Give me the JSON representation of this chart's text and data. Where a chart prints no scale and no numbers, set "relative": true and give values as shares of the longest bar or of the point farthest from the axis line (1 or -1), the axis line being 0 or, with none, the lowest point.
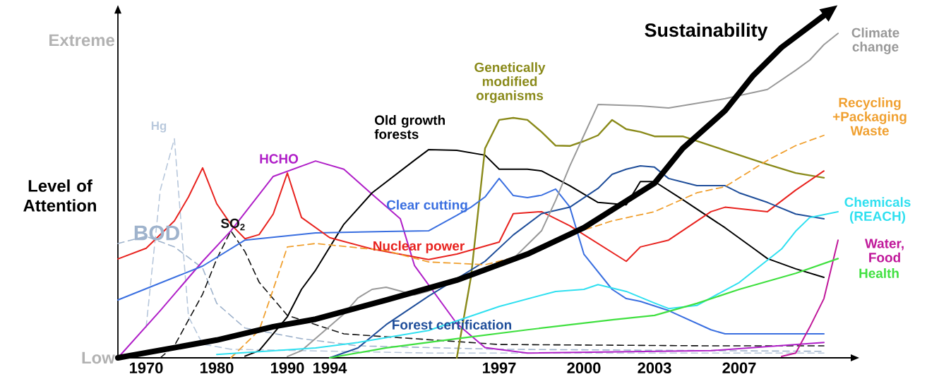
{
  "chart_data": {
    "type": "line",
    "relative": true,
    "ylabel": "Level of Attention",
    "annotations": [
      "Extreme",
      "Low"
    ],
    "categories": [
      null,
      null,
      "1970",
      null,
      null,
      null,
      null,
      "1980",
      null,
      null,
      null,
      null,
      "1990",
      null,
      null,
      "1994",
      null,
      null,
      null,
      null,
      null,
      null,
      null,
      null,
      null,
      null,
      null,
      "1997",
      null,
      null,
      null,
      null,
      null,
      "2000",
      null,
      null,
      null,
      null,
      "2003",
      null,
      null,
      null,
      null,
      null,
      "2007",
      null,
      null,
      null,
      null,
      null,
      null,
      null,
      null
    ],
    "line_style": "solid",
    "series": [
      {
        "name": "Hg",
        "color": "#b8c8dc",
        "line_style": "dashed",
        "values": [
          null,
          null,
          0.09,
          0.49,
          0.64,
          0.12,
          0.04,
          null,
          0.025,
          null,
          null,
          null,
          null,
          null,
          null,
          null,
          null,
          null,
          null,
          null,
          null,
          null,
          0.014,
          null,
          null,
          null,
          null,
          null,
          null,
          null,
          null,
          null,
          null,
          null,
          null,
          null,
          null,
          null,
          null,
          null,
          null,
          null,
          0.014,
          null,
          null,
          null,
          null,
          null,
          null,
          null,
          0.014,
          null,
          null
        ]
      },
      {
        "name": "BOD",
        "color": "#9fb3cc",
        "line_style": "dashed",
        "values": [
          0.334,
          null,
          0.355,
          null,
          0.324,
          null,
          0.262,
          0.159,
          null,
          0.087,
          null,
          null,
          null,
          0.056,
          null,
          null,
          null,
          0.035,
          null,
          null,
          null,
          null,
          null,
          null,
          null,
          null,
          null,
          0.025,
          null,
          null,
          null,
          null,
          null,
          null,
          null,
          null,
          null,
          null,
          null,
          null,
          null,
          null,
          0.021,
          null,
          null,
          null,
          null,
          null,
          null,
          null,
          0.019,
          null,
          null
        ]
      },
      {
        "name": "SO$_{2}$",
        "color": "#111111",
        "line_style": "dashed",
        "values": [
          null,
          null,
          null,
          0,
          0.035,
          null,
          0.186,
          0.289,
          0.371,
          0.31,
          0.221,
          null,
          0.124,
          null,
          null,
          null,
          0.07,
          null,
          null,
          null,
          null,
          null,
          null,
          null,
          null,
          null,
          null,
          0.039,
          null,
          null,
          null,
          null,
          null,
          null,
          null,
          null,
          null,
          null,
          null,
          null,
          null,
          null,
          0.035,
          null,
          null,
          null,
          null,
          null,
          null,
          null,
          0.035,
          null,
          null
        ]
      },
      {
        "name": "HCHO",
        "color": "#b020c8",
        "values": [
          0,
          null,
          null,
          0.138,
          null,
          null,
          0.282,
          null,
          0.371,
          null,
          null,
          0.53,
          null,
          null,
          0.575,
          null,
          0.551,
          null,
          0.478,
          null,
          0.406,
          0.27,
          null,
          null,
          0.1,
          null,
          0.03,
          null,
          null,
          0.014,
          null,
          null,
          null,
          null,
          null,
          null,
          null,
          null,
          null,
          null,
          null,
          null,
          0.021,
          null,
          null,
          null,
          null,
          null,
          null,
          null,
          0.045,
          null,
          null
        ]
      },
      {
        "name": "Old growth forests",
        "color": "#000000",
        "values": [
          null,
          null,
          null,
          null,
          null,
          null,
          null,
          null,
          null,
          0.005,
          0.021,
          null,
          0.12,
          0.2,
          0.256,
          null,
          0.39,
          null,
          0.482,
          null,
          null,
          0.577,
          0.608,
          null,
          0.606,
          null,
          0.592,
          0.551,
          null,
          0.551,
          0.546,
          null,
          0.503,
          null,
          0.454,
          null,
          0.447,
          0.515,
          0.515,
          null,
          0.462,
          null,
          null,
          0.38,
          null,
          0.32,
          0.29,
          null,
          0.26,
          null,
          0.235,
          null,
          null
        ]
      },
      {
        "name": "Genetically modified organisms",
        "color": "#8a8a1a",
        "values": [
          null,
          null,
          null,
          null,
          null,
          null,
          null,
          null,
          null,
          null,
          null,
          null,
          null,
          null,
          null,
          null,
          null,
          null,
          null,
          null,
          null,
          null,
          null,
          null,
          0,
          0.235,
          0.612,
          0.695,
          0.701,
          0.695,
          0.66,
          0.62,
          0.619,
          0.633,
          0.65,
          0.695,
          0.668,
          0.66,
          0.647,
          null,
          0.647,
          null,
          0.62,
          0.606,
          null,
          null,
          0.565,
          null,
          0.54,
          null,
          0.526,
          null,
          null
        ]
      },
      {
        "name": "Clear cutting",
        "color": "#3a6fe0",
        "values": [
          0.169,
          null,
          null,
          null,
          null,
          null,
          0.268,
          null,
          null,
          0.344,
          null,
          null,
          null,
          null,
          0.365,
          null,
          null,
          null,
          null,
          0.369,
          null,
          null,
          0.371,
          null,
          0.416,
          0.44,
          0.47,
          0.524,
          0.474,
          0.468,
          0.475,
          0.493,
          0.441,
          0.303,
          null,
          0.2,
          0.173,
          0.165,
          null,
          0.138,
          null,
          null,
          0.082,
          0.07,
          null,
          null,
          null,
          null,
          null,
          null,
          0.07,
          null,
          null
        ]
      },
      {
        "name": "Nuclear power",
        "color": "#e8231f",
        "values": [
          0.289,
          null,
          0.32,
          null,
          0.4,
          0.47,
          0.555,
          0.45,
          0.39,
          0.348,
          0.36,
          0.42,
          0.54,
          0.41,
          null,
          0.351,
          null,
          null,
          0.318,
          null,
          null,
          null,
          0.287,
          null,
          0.303,
          null,
          null,
          0.338,
          0.421,
          null,
          0.427,
          null,
          0.386,
          null,
          0.334,
          null,
          0.282,
          0.324,
          null,
          0.344,
          null,
          null,
          0.427,
          0.44,
          null,
          null,
          0.427,
          null,
          0.49,
          null,
          0.546,
          null,
          null
        ]
      },
      {
        "name": "Forest certification",
        "color": "#1f4e9a",
        "values": [
          null,
          null,
          null,
          null,
          null,
          null,
          null,
          null,
          null,
          null,
          null,
          null,
          null,
          null,
          null,
          0,
          null,
          0.029,
          null,
          0.097,
          null,
          null,
          0.18,
          null,
          null,
          null,
          0.282,
          null,
          0.359,
          null,
          0.421,
          null,
          0.44,
          null,
          0.495,
          0.536,
          0.551,
          0.561,
          0.557,
          0.524,
          null,
          0.503,
          null,
          0.503,
          0.482,
          null,
          0.454,
          null,
          0.42,
          null,
          0.406,
          null,
          null
        ]
      },
      {
        "name": "Climate change",
        "color": "#999999",
        "values": [
          null,
          null,
          null,
          null,
          null,
          null,
          null,
          null,
          null,
          null,
          null,
          null,
          0.004,
          0.021,
          null,
          null,
          0.128,
          0.175,
          0.2,
          0.206,
          null,
          0.184,
          0.195,
          null,
          null,
          0.241,
          null,
          null,
          0.29,
          null,
          0.371,
          0.46,
          0.56,
          0.65,
          0.74,
          null,
          null,
          0.736,
          null,
          0.73,
          null,
          null,
          null,
          0.757,
          null,
          null,
          0.784,
          null,
          0.84,
          0.87,
          0.915,
          0.948,
          null
        ]
      },
      {
        "name": "Recycling +Packaging Waste",
        "color": "#f0a030",
        "line_style": "dashed",
        "values": [
          null,
          null,
          null,
          null,
          null,
          null,
          null,
          null,
          0,
          0.04,
          0.08,
          0.2,
          0.324,
          null,
          0.334,
          null,
          null,
          null,
          null,
          0.313,
          null,
          null,
          0.28,
          null,
          null,
          null,
          0.272,
          null,
          null,
          0.303,
          null,
          null,
          0.36,
          null,
          null,
          0.4,
          null,
          null,
          0.427,
          null,
          null,
          0.482,
          null,
          0.5,
          null,
          null,
          0.577,
          null,
          0.62,
          null,
          0.65,
          null,
          null
        ]
      },
      {
        "name": "Chemicals (REACH)",
        "color": "#30e0f0",
        "values": [
          null,
          null,
          null,
          null,
          null,
          null,
          null,
          0.01,
          null,
          null,
          null,
          null,
          null,
          null,
          0.029,
          null,
          null,
          0.045,
          null,
          null,
          null,
          null,
          0.08,
          null,
          null,
          null,
          null,
          0.15,
          null,
          null,
          null,
          0.194,
          null,
          0.2,
          0.214,
          null,
          0.194,
          null,
          0.16,
          0.144,
          null,
          0.153,
          null,
          null,
          0.22,
          null,
          null,
          0.318,
          0.37,
          0.41,
          null,
          0.427,
          null
        ]
      },
      {
        "name": "Water, Food",
        "color": "#c0189a",
        "values": [
          null,
          null,
          null,
          null,
          null,
          null,
          null,
          null,
          null,
          null,
          null,
          null,
          null,
          null,
          null,
          null,
          null,
          null,
          null,
          null,
          null,
          null,
          null,
          null,
          null,
          null,
          null,
          null,
          null,
          null,
          null,
          null,
          null,
          null,
          null,
          null,
          null,
          null,
          null,
          null,
          null,
          null,
          null,
          null,
          null,
          null,
          null,
          0.004,
          0.014,
          0.09,
          0.173,
          0.344,
          null
        ]
      },
      {
        "name": "Health",
        "color": "#40e040",
        "values": [
          null,
          null,
          null,
          null,
          null,
          null,
          null,
          null,
          null,
          null,
          null,
          null,
          null,
          null,
          null,
          0,
          null,
          null,
          null,
          0.029,
          null,
          null,
          null,
          null,
          0.056,
          null,
          null,
          null,
          null,
          0.082,
          null,
          null,
          null,
          null,
          null,
          0.111,
          null,
          null,
          0.124,
          null,
          null,
          0.159,
          null,
          null,
          0.2,
          null,
          null,
          null,
          0.247,
          null,
          null,
          0.29,
          null
        ]
      },
      {
        "name": "Sustainability",
        "color": "#000000",
        "values": [
          0,
          null,
          null,
          null,
          null,
          null,
          null,
          0.052,
          null,
          null,
          null,
          0.091,
          null,
          null,
          0.113,
          null,
          null,
          null,
          null,
          0.169,
          null,
          null,
          null,
          null,
          0.227,
          null,
          null,
          null,
          null,
          0.303,
          null,
          null,
          null,
          0.38,
          null,
          null,
          null,
          null,
          0.51,
          null,
          0.612,
          null,
          null,
          0.722,
          null,
          0.825,
          null,
          0.907,
          null,
          null,
          1,
          null,
          null
        ]
      }
    ]
  }
}
